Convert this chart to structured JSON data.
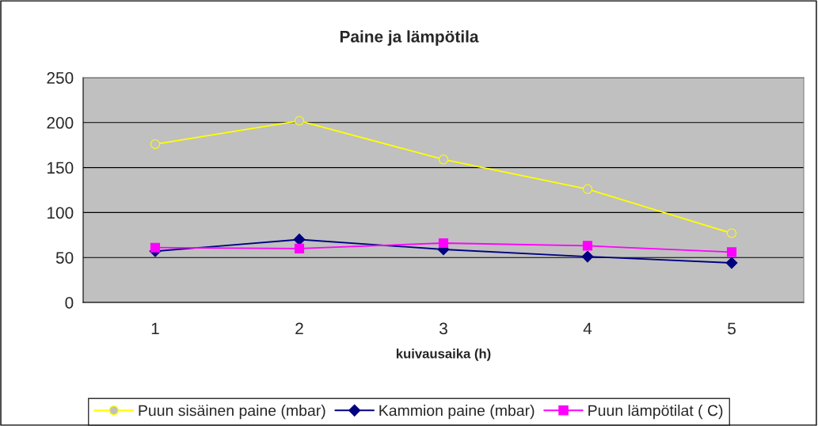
{
  "chart_data": {
    "type": "line",
    "title": "Paine ja lämpötila",
    "xlabel": "kuivausaika (h)",
    "categories": [
      "1",
      "2",
      "3",
      "4",
      "5"
    ],
    "series": [
      {
        "name": "Puun sisäinen paine (mbar)",
        "color": "#ffff00",
        "marker": "circle",
        "values": [
          176,
          202,
          159,
          126,
          77
        ]
      },
      {
        "name": "Kammion paine (mbar)",
        "color": "#000080",
        "marker": "diamond",
        "values": [
          57,
          70,
          59,
          51,
          44
        ]
      },
      {
        "name": "Puun lämpötilat ( C)",
        "color": "#ff00ff",
        "marker": "square",
        "values": [
          61,
          60,
          66,
          63,
          56
        ]
      }
    ],
    "ylim": [
      0,
      250
    ],
    "yticks": [
      0,
      50,
      100,
      150,
      200,
      250
    ],
    "grid": "y",
    "legend": "bottom"
  }
}
